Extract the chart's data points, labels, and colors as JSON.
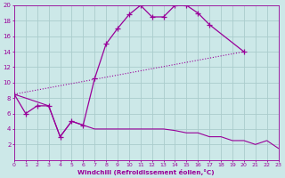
{
  "xlabel": "Windchill (Refroidissement éolien,°C)",
  "background_color": "#cce8e8",
  "grid_color": "#aacccc",
  "line_color": "#990099",
  "xlim": [
    0,
    23
  ],
  "ylim": [
    0,
    20
  ],
  "xticks": [
    0,
    1,
    2,
    3,
    4,
    5,
    6,
    7,
    8,
    9,
    10,
    11,
    12,
    13,
    14,
    15,
    16,
    17,
    18,
    19,
    20,
    21,
    22,
    23
  ],
  "yticks": [
    2,
    4,
    6,
    8,
    10,
    12,
    14,
    16,
    18,
    20
  ],
  "series": [
    {
      "x": [
        0,
        1,
        2,
        3,
        4,
        5,
        6,
        7,
        8,
        9,
        10,
        11,
        12,
        13,
        14,
        15,
        16,
        17,
        20
      ],
      "y": [
        8.5,
        6,
        7,
        7,
        3,
        5,
        4.5,
        10.5,
        15,
        17,
        18.8,
        20,
        18.5,
        18.5,
        20,
        20,
        19,
        17.5,
        14
      ],
      "marker": "+",
      "markersize": 4,
      "linestyle": "-",
      "linewidth": 0.9
    },
    {
      "x": [
        0,
        20
      ],
      "y": [
        8.5,
        14
      ],
      "marker": null,
      "markersize": 0,
      "linestyle": ":",
      "linewidth": 0.8
    },
    {
      "x": [
        0,
        3,
        4,
        5,
        6,
        7,
        8,
        9,
        10,
        11,
        12,
        13,
        14,
        15,
        16,
        17,
        18,
        19,
        20,
        21,
        22,
        23
      ],
      "y": [
        8.5,
        7,
        3,
        5,
        4.5,
        4,
        4,
        4,
        4,
        4,
        4,
        4,
        3.8,
        3.5,
        3.5,
        3,
        3,
        2.5,
        2.5,
        2,
        2.5,
        1.5
      ],
      "marker": null,
      "markersize": 0,
      "linestyle": "-",
      "linewidth": 0.8
    }
  ]
}
